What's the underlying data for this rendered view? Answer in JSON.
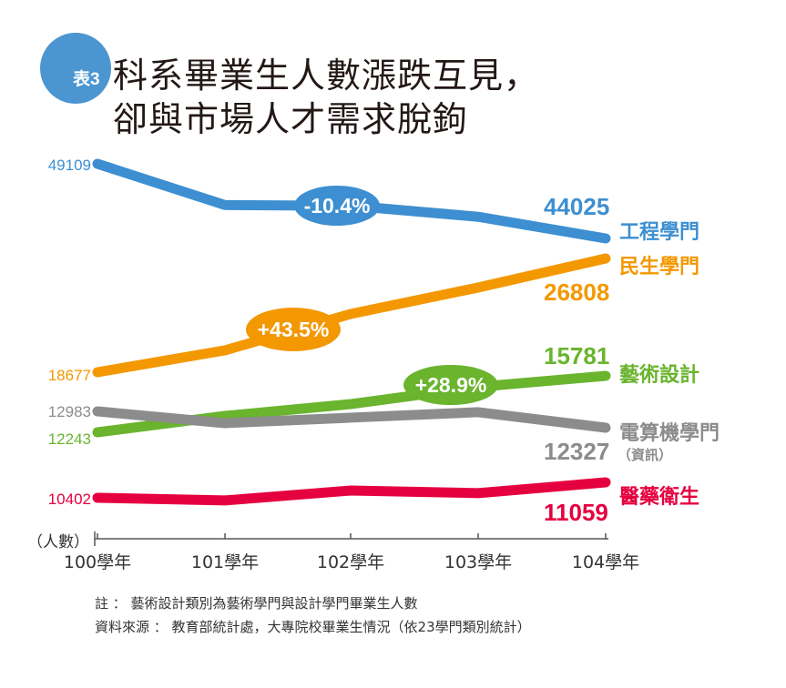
{
  "title": {
    "tag": "表3",
    "line1": "科系畢業生人數漲跌互見，",
    "line2": "卻與市場人才需求脫鉤"
  },
  "notes": {
    "note": "註 ： 藝術設計類別為藝術學門與設計學門畢業生人數",
    "source": "資料來源 ： 教育部統計處，大專院校畢業生情況（依23學門類別統計）"
  },
  "chart_data": {
    "type": "line",
    "title": "科系畢業生人數漲跌互見，卻與市場人才需求脫鉤",
    "ylabel": "（人數）",
    "xlabel": "",
    "categories": [
      "100學年",
      "101學年",
      "102學年",
      "103學年",
      "104學年"
    ],
    "grid": false,
    "legend": "labels at line ends (right)",
    "series": [
      {
        "name": "工程學門",
        "color": "#3d8fd1",
        "values": [
          49109,
          46300,
          46250,
          45500,
          44025
        ],
        "start_label": "49109",
        "end_label": "44025",
        "change": "-10.4%"
      },
      {
        "name": "民生學門",
        "color": "#f39800",
        "values": [
          18677,
          20240,
          22840,
          24730,
          26808
        ],
        "start_label": "18677",
        "end_label": "26808",
        "change": "+43.5%"
      },
      {
        "name": "藝術設計",
        "color": "#6ab42e",
        "values": [
          12243,
          13270,
          14010,
          15090,
          15781
        ],
        "start_label": "12243",
        "end_label": "15781",
        "change": "+28.9%"
      },
      {
        "name": "電算機學門",
        "sub": "（資訊）",
        "color": "#8c8c8c",
        "values": [
          12983,
          12510,
          12730,
          12950,
          12327
        ],
        "start_label": "12983",
        "end_label": "12327"
      },
      {
        "name": "醫藥衛生",
        "color": "#e5003f",
        "values": [
          10402,
          10290,
          10710,
          10600,
          11059
        ],
        "start_label": "10402",
        "end_label": "11059"
      }
    ]
  }
}
